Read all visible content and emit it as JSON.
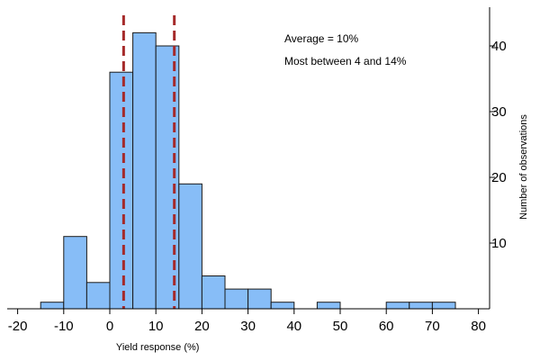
{
  "chart_data": {
    "type": "bar",
    "subtype": "histogram",
    "xlabel": "Yield response (%)",
    "ylabel": "Number of observations",
    "xlim": [
      -22,
      82
    ],
    "ylim": [
      0,
      45
    ],
    "x_ticks": [
      -20,
      -10,
      0,
      10,
      20,
      30,
      40,
      50,
      60,
      70,
      80
    ],
    "y_ticks": [
      10,
      20,
      30,
      40
    ],
    "y_axis_side": "right",
    "grid": false,
    "bins": [
      {
        "start": -15,
        "end": -10,
        "count": 1
      },
      {
        "start": -10,
        "end": -5,
        "count": 11
      },
      {
        "start": -5,
        "end": 0,
        "count": 4
      },
      {
        "start": 0,
        "end": 5,
        "count": 36
      },
      {
        "start": 5,
        "end": 10,
        "count": 42
      },
      {
        "start": 10,
        "end": 15,
        "count": 40
      },
      {
        "start": 15,
        "end": 20,
        "count": 19
      },
      {
        "start": 20,
        "end": 25,
        "count": 5
      },
      {
        "start": 25,
        "end": 30,
        "count": 3
      },
      {
        "start": 30,
        "end": 35,
        "count": 3
      },
      {
        "start": 35,
        "end": 40,
        "count": 1
      },
      {
        "start": 45,
        "end": 50,
        "count": 1
      },
      {
        "start": 60,
        "end": 65,
        "count": 1
      },
      {
        "start": 65,
        "end": 70,
        "count": 1
      },
      {
        "start": 70,
        "end": 75,
        "count": 1
      }
    ],
    "reference_lines": [
      {
        "x": 3,
        "style": "dashed",
        "color": "#a52a2a"
      },
      {
        "x": 14,
        "style": "dashed",
        "color": "#a52a2a"
      }
    ],
    "annotations": [
      "Average = 10%",
      "Most between 4 and 14%"
    ],
    "colors": {
      "bar_fill": "#87bdf7",
      "bar_stroke": "#1a1a1a",
      "reference_line": "#a52a2a"
    }
  }
}
